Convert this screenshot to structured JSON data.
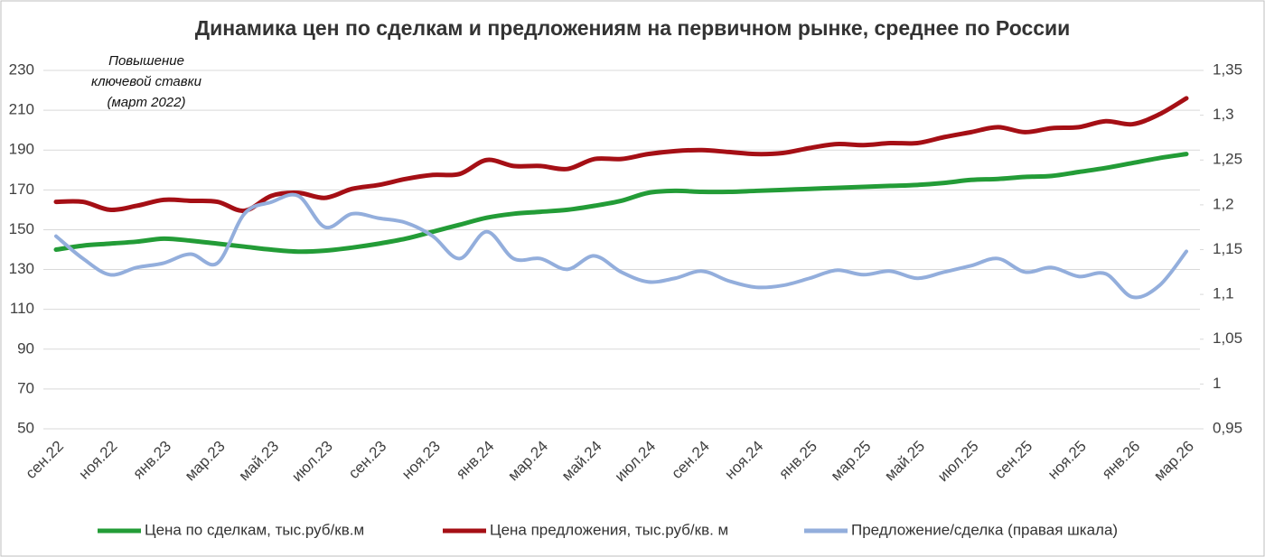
{
  "chart_data": {
    "type": "line",
    "title": "Динамика цен по сделкам и предложениям на первичном рынке, среднее по России",
    "annotation": [
      "Повышение",
      "ключевой ставки",
      "(март 2022)"
    ],
    "categories": [
      "сен.22",
      null,
      "ноя.22",
      null,
      "янв.23",
      null,
      "мар.23",
      null,
      "май.23",
      null,
      "июл.23",
      null,
      "сен.23",
      null,
      "ноя.23",
      null,
      "янв.24",
      null,
      "мар.24",
      null,
      "май.24",
      null,
      "июл.24",
      null,
      "сен.24",
      null,
      "ноя.24",
      null,
      "янв.25",
      null,
      "мар.25",
      null,
      "май.25",
      null,
      "июл.25",
      null,
      "сен.25",
      null,
      "ноя.25",
      null,
      "янв.26",
      null,
      "мар.26"
    ],
    "ylim": [
      50,
      230
    ],
    "yticks": [
      50,
      70,
      90,
      110,
      130,
      150,
      170,
      190,
      210,
      230
    ],
    "y2lim": [
      0.95,
      1.35
    ],
    "y2ticks": [
      {
        "value": 0.95,
        "label": "0,95"
      },
      1,
      {
        "value": 1.05,
        "label": "1,05"
      },
      {
        "value": 1.1,
        "label": "1,1"
      },
      {
        "value": 1.15,
        "label": "1,15"
      },
      {
        "value": 1.2,
        "label": "1,2"
      },
      {
        "value": 1.25,
        "label": "1,25"
      },
      {
        "value": 1.3,
        "label": "1,3"
      },
      {
        "value": 1.35,
        "label": "1,35"
      }
    ],
    "grid": true,
    "legend": "bottom",
    "series": [
      {
        "name": "Цена по сделкам, тыс.руб/кв.м",
        "color": "#239c37",
        "values": [
          140,
          142,
          143,
          144,
          145.5,
          144.5,
          143,
          141.5,
          140,
          139,
          139.5,
          141,
          143,
          145.5,
          149,
          152.5,
          156,
          158,
          159,
          160,
          162,
          164.5,
          168.5,
          169.5,
          169,
          169,
          169.5,
          170,
          170.5,
          171,
          171.5,
          172,
          172.5,
          173.5,
          175,
          175.5,
          176.5,
          177,
          179,
          181,
          183.5,
          186,
          188
        ]
      },
      {
        "name": "Цена предложения, тыс.руб/кв. м",
        "color": "#a50f15",
        "values": [
          164,
          164,
          160,
          162,
          165,
          164.5,
          164,
          159.5,
          167,
          168.5,
          166,
          170.5,
          172.5,
          175.5,
          177.5,
          178,
          185,
          182,
          182,
          180.5,
          185.5,
          185.5,
          188,
          189.5,
          190,
          189,
          188,
          188.5,
          191,
          193,
          192.5,
          193.5,
          193.5,
          196.5,
          199,
          201.5,
          199,
          201,
          201.5,
          204.5,
          203,
          208,
          216
        ]
      },
      {
        "name": "Предложение/сделка (правая шкала)",
        "color": "#93aedc",
        "axis": "y2",
        "values": [
          1.165,
          1.14,
          1.122,
          1.13,
          1.135,
          1.145,
          1.135,
          1.19,
          1.203,
          1.21,
          1.175,
          1.19,
          1.185,
          1.18,
          1.165,
          1.14,
          1.17,
          1.14,
          1.14,
          1.128,
          1.143,
          1.125,
          1.114,
          1.118,
          1.126,
          1.115,
          1.108,
          1.11,
          1.118,
          1.127,
          1.122,
          1.126,
          1.118,
          1.125,
          1.132,
          1.14,
          1.125,
          1.13,
          1.12,
          1.123,
          1.097,
          1.11,
          1.148
        ]
      }
    ]
  }
}
